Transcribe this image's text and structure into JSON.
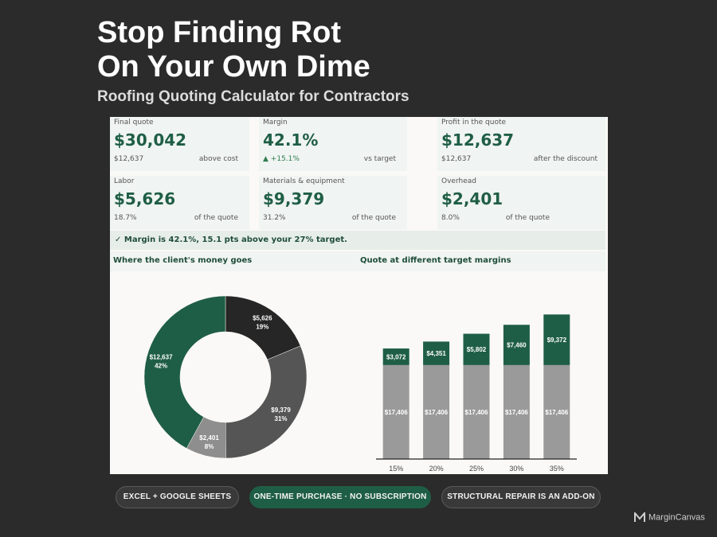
{
  "hero": {
    "title_line1": "Stop Finding Rot",
    "title_line2": "On Your Own Dime",
    "subtitle": "Roofing Quoting Calculator for Contractors"
  },
  "kpis": [
    {
      "label": "Final quote",
      "value": "$30,042",
      "sub_left": "$12,637",
      "sub_right": "above cost"
    },
    {
      "label": "Margin",
      "value": "42.1%",
      "sub_left": "▲ +15.1%",
      "sub_right": "vs target"
    },
    {
      "label": "Profit in the quote",
      "value": "$12,637",
      "sub_left": "$12,637",
      "sub_right": "after the discount"
    },
    {
      "label": "Labor",
      "value": "$5,626",
      "sub_left": "18.7%",
      "sub_right": "of the quote"
    },
    {
      "label": "Materials & equipment",
      "value": "$9,379",
      "sub_left": "31.2%",
      "sub_right": "of the quote"
    },
    {
      "label": "Overhead",
      "value": "$2,401",
      "sub_left": "8.0%",
      "sub_right": "of the quote"
    }
  ],
  "status": {
    "check": "✓",
    "text": "Margin is 42.1%, 15.1 pts above your 27% target."
  },
  "sections": {
    "donut_title": "Where the client's money goes",
    "bar_title": "Quote at different target margins"
  },
  "chart_data": [
    {
      "type": "pie",
      "title": "Where the client's money goes",
      "donut": true,
      "slices": [
        {
          "label": "$5,626",
          "pct_label": "19%",
          "value": 5626,
          "color": "#262626"
        },
        {
          "label": "$9,379",
          "pct_label": "31%",
          "value": 9379,
          "color": "#555555"
        },
        {
          "label": "$2,401",
          "pct_label": "8%",
          "value": 2401,
          "color": "#8e8e8e"
        },
        {
          "label": "$12,637",
          "pct_label": "42%",
          "value": 12637,
          "color": "#1f5e46"
        }
      ]
    },
    {
      "type": "bar",
      "stacked": true,
      "title": "Quote at different target margins",
      "categories": [
        "15%",
        "20%",
        "25%",
        "30%",
        "35%"
      ],
      "series": [
        {
          "values": [
            17406,
            17406,
            17406,
            17406,
            17406
          ],
          "labels": [
            "$17,406",
            "$17,406",
            "$17,406",
            "$17,406",
            "$17,406"
          ],
          "color": "#9a9a9a"
        },
        {
          "values": [
            3072,
            4351,
            5802,
            7460,
            9372
          ],
          "labels": [
            "$3,072",
            "$4,351",
            "$5,802",
            "$7,460",
            "$9,372"
          ],
          "color": "#1f5e46"
        }
      ],
      "ylim": [
        0,
        28000
      ],
      "grid": false
    }
  ],
  "footer": {
    "pills": [
      "EXCEL + GOOGLE SHEETS",
      "ONE-TIME PURCHASE · NO SUBSCRIPTION",
      "STRUCTURAL REPAIR IS AN ADD-ON"
    ],
    "brand": "MarginCanvas"
  }
}
